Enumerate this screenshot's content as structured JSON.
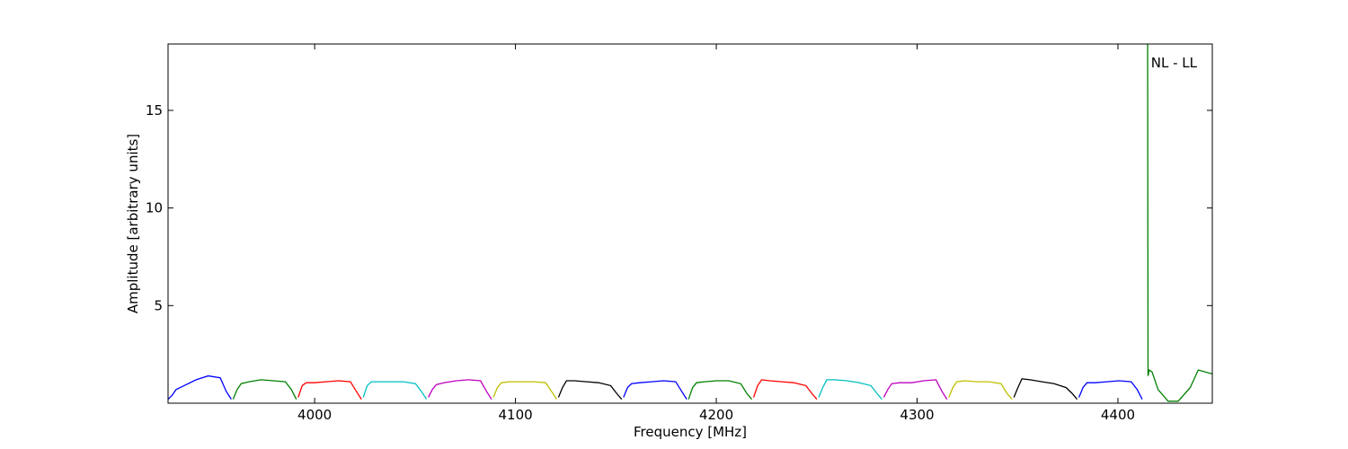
{
  "chart_data": {
    "type": "line",
    "xlabel": "Frequency [MHz]",
    "ylabel": "Amplitude [arbitrary units]",
    "annotation": "NL - LL",
    "xlim": [
      3927,
      4447
    ],
    "ylim": [
      0,
      18.4
    ],
    "xticks": [
      4000,
      4100,
      4200,
      4300,
      4400
    ],
    "yticks": [
      5,
      10,
      15
    ],
    "grid": false,
    "series": [
      {
        "color": "#0000ff",
        "x": [
          3927,
          3929,
          3931,
          3935,
          3941,
          3947,
          3953,
          3956,
          3958.5
        ],
        "values": [
          0.2,
          0.4,
          0.7,
          0.9,
          1.2,
          1.4,
          1.3,
          0.6,
          0.2
        ]
      },
      {
        "color": "#008000",
        "x": [
          3959.4,
          3961.4,
          3963.4,
          3967.4,
          3973.4,
          3979.4,
          3985.4,
          3988.4,
          3990.9
        ],
        "values": [
          0.2,
          0.7,
          1.0,
          1.1,
          1.2,
          1.15,
          1.1,
          0.7,
          0.2
        ]
      },
      {
        "color": "#ff0000",
        "x": [
          3991.8,
          3993.8,
          3995.8,
          3999.8,
          4005.8,
          4011.8,
          4017.8,
          4020.8,
          4023.3
        ],
        "values": [
          0.3,
          0.9,
          1.05,
          1.05,
          1.1,
          1.15,
          1.1,
          0.6,
          0.2
        ]
      },
      {
        "color": "#00bfbf",
        "x": [
          4024.2,
          4026.2,
          4028.2,
          4032.2,
          4038.2,
          4044.2,
          4050.2,
          4053.2,
          4055.7
        ],
        "values": [
          0.3,
          0.9,
          1.1,
          1.1,
          1.1,
          1.1,
          1.0,
          0.6,
          0.2
        ]
      },
      {
        "color": "#bf00bf",
        "x": [
          4056.6,
          4058.6,
          4060.6,
          4064.6,
          4070.6,
          4076.6,
          4082.6,
          4085.6,
          4088.1
        ],
        "values": [
          0.3,
          0.7,
          0.95,
          1.05,
          1.15,
          1.2,
          1.15,
          0.6,
          0.2
        ]
      },
      {
        "color": "#bfbf00",
        "x": [
          4089,
          4091,
          4093,
          4097,
          4103,
          4109,
          4115,
          4118,
          4120.5
        ],
        "values": [
          0.3,
          0.8,
          1.05,
          1.1,
          1.1,
          1.1,
          1.05,
          0.6,
          0.2
        ]
      },
      {
        "color": "#000000",
        "x": [
          4121.4,
          4123.4,
          4125.4,
          4129.4,
          4135.4,
          4141.4,
          4147.4,
          4150.4,
          4152.9
        ],
        "values": [
          0.3,
          0.8,
          1.15,
          1.15,
          1.1,
          1.05,
          0.9,
          0.5,
          0.2
        ]
      },
      {
        "color": "#0000ff",
        "x": [
          4153.8,
          4155.8,
          4157.8,
          4161.8,
          4167.8,
          4173.8,
          4179.8,
          4182.8,
          4185.3
        ],
        "values": [
          0.3,
          0.8,
          1.0,
          1.05,
          1.1,
          1.15,
          1.1,
          0.6,
          0.2
        ]
      },
      {
        "color": "#008000",
        "x": [
          4186.2,
          4188.2,
          4190.2,
          4194.2,
          4200.2,
          4206.2,
          4212.2,
          4215.2,
          4217.7
        ],
        "values": [
          0.2,
          0.8,
          1.05,
          1.1,
          1.15,
          1.15,
          1.0,
          0.5,
          0.2
        ]
      },
      {
        "color": "#ff0000",
        "x": [
          4218.6,
          4220.6,
          4222.6,
          4226.6,
          4232.6,
          4238.6,
          4244.6,
          4247.6,
          4250.1
        ],
        "values": [
          0.3,
          0.9,
          1.2,
          1.15,
          1.1,
          1.05,
          0.9,
          0.5,
          0.2
        ]
      },
      {
        "color": "#00bfbf",
        "x": [
          4251,
          4253,
          4255,
          4259,
          4265,
          4271,
          4277,
          4280,
          4282.5
        ],
        "values": [
          0.3,
          0.8,
          1.2,
          1.2,
          1.15,
          1.05,
          0.9,
          0.5,
          0.2
        ]
      },
      {
        "color": "#bf00bf",
        "x": [
          4283.4,
          4285.4,
          4287.4,
          4291.4,
          4297.4,
          4303.4,
          4309.4,
          4312.4,
          4314.9
        ],
        "values": [
          0.3,
          0.7,
          1.0,
          1.05,
          1.05,
          1.15,
          1.2,
          0.6,
          0.2
        ]
      },
      {
        "color": "#bfbf00",
        "x": [
          4315.8,
          4317.8,
          4319.8,
          4323.8,
          4329.8,
          4335.8,
          4341.8,
          4344.8,
          4347.3
        ],
        "values": [
          0.3,
          0.8,
          1.1,
          1.15,
          1.1,
          1.1,
          1.0,
          0.5,
          0.2
        ]
      },
      {
        "color": "#000000",
        "x": [
          4348.2,
          4350.2,
          4352.2,
          4356.2,
          4362.2,
          4368.2,
          4374.2,
          4377.2,
          4379.7
        ],
        "values": [
          0.3,
          0.8,
          1.25,
          1.2,
          1.1,
          1.0,
          0.8,
          0.5,
          0.2
        ]
      },
      {
        "color": "#0000ff",
        "x": [
          4380.6,
          4382.6,
          4384.6,
          4388.6,
          4394.6,
          4400.6,
          4406.6,
          4409.6,
          4412.1
        ],
        "values": [
          0.3,
          0.8,
          1.05,
          1.05,
          1.1,
          1.15,
          1.1,
          0.7,
          0.2
        ]
      },
      {
        "color": "#008000",
        "x": [
          4414.8,
          4415,
          4415.6,
          4417,
          4420,
          4425,
          4430,
          4436,
          4440,
          4447
        ],
        "values": [
          18.4,
          1.4,
          1.7,
          1.6,
          0.7,
          0.1,
          0.1,
          0.8,
          1.7,
          1.5
        ]
      }
    ]
  }
}
